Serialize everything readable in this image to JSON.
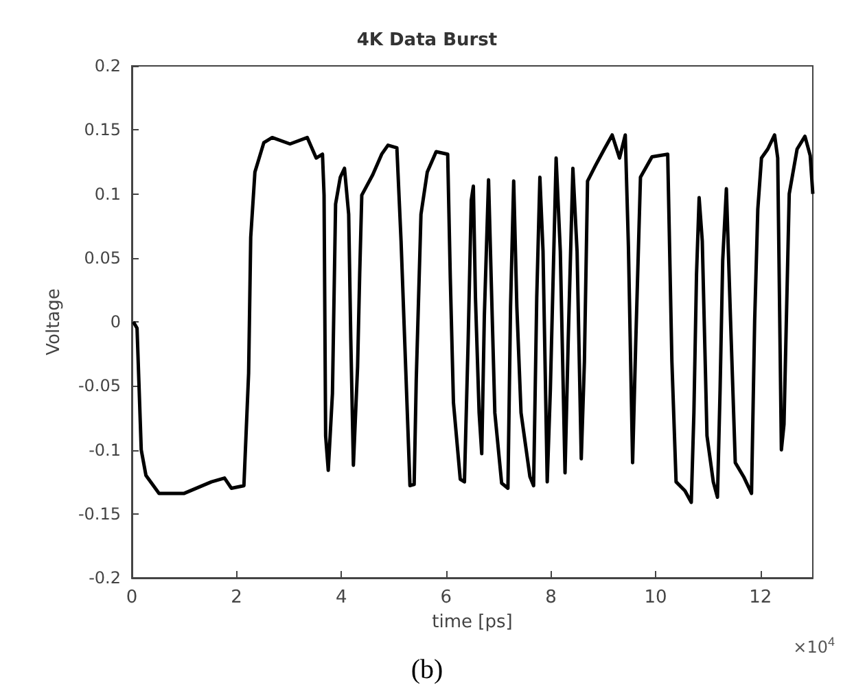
{
  "chart_data": {
    "type": "line",
    "title": "4K Data Burst",
    "xlabel": "time [ps]",
    "ylabel": "Voltage",
    "annotations": [
      "×10$^{4}$",
      "(b)"
    ],
    "xlim": [
      0,
      13
    ],
    "xticks": [
      0,
      2,
      4,
      6,
      8,
      10,
      12
    ],
    "ylim": [
      -0.2,
      0.2
    ],
    "yticks": [
      -0.2,
      -0.15,
      -0.1,
      -0.05,
      0,
      0.05,
      0.1,
      0.15,
      0.2
    ],
    "grid": false,
    "marker": "none",
    "line_style": "solid",
    "series": [
      {
        "color": "#000000",
        "x": [
          0.03,
          0.1,
          0.18,
          0.27,
          0.52,
          1.0,
          1.52,
          1.77,
          1.9,
          2.14,
          2.23,
          2.27,
          2.35,
          2.52,
          2.68,
          3.02,
          3.35,
          3.52,
          3.64,
          3.67,
          3.7,
          3.75,
          3.83,
          3.89,
          3.98,
          4.06,
          4.14,
          4.18,
          4.23,
          4.31,
          4.35,
          4.39,
          4.6,
          4.77,
          4.89,
          5.06,
          5.14,
          5.23,
          5.31,
          5.39,
          5.43,
          5.52,
          5.64,
          5.81,
          6.03,
          6.08,
          6.14,
          6.27,
          6.35,
          6.42,
          6.48,
          6.52,
          6.56,
          6.63,
          6.68,
          6.73,
          6.81,
          6.87,
          6.93,
          7.06,
          7.18,
          7.23,
          7.29,
          7.35,
          7.43,
          7.6,
          7.67,
          7.73,
          7.79,
          7.85,
          7.93,
          7.99,
          8.1,
          8.18,
          8.27,
          8.33,
          8.42,
          8.5,
          8.58,
          8.64,
          8.7,
          8.85,
          9.02,
          9.17,
          9.31,
          9.42,
          9.48,
          9.56,
          9.62,
          9.71,
          9.93,
          10.23,
          10.31,
          10.39,
          10.56,
          10.68,
          10.73,
          10.78,
          10.83,
          10.89,
          10.98,
          11.1,
          11.18,
          11.23,
          11.28,
          11.35,
          11.43,
          11.52,
          11.68,
          11.83,
          11.89,
          11.95,
          12.02,
          12.14,
          12.27,
          12.33,
          12.4,
          12.45,
          12.55,
          12.7,
          12.85,
          12.95,
          13.0
        ],
        "values": [
          0.0,
          -0.005,
          -0.1,
          -0.12,
          -0.134,
          -0.134,
          -0.125,
          -0.122,
          -0.13,
          -0.128,
          -0.04,
          0.066,
          0.117,
          0.14,
          0.144,
          0.139,
          0.144,
          0.128,
          0.131,
          0.099,
          -0.089,
          -0.116,
          -0.056,
          0.092,
          0.113,
          0.12,
          0.084,
          -0.013,
          -0.112,
          -0.035,
          0.037,
          0.099,
          0.115,
          0.131,
          0.138,
          0.136,
          0.063,
          -0.038,
          -0.128,
          -0.127,
          -0.045,
          0.084,
          0.117,
          0.133,
          0.131,
          0.034,
          -0.063,
          -0.123,
          -0.125,
          -0.016,
          0.095,
          0.106,
          0.019,
          -0.071,
          -0.103,
          0.005,
          0.111,
          0.019,
          -0.071,
          -0.126,
          -0.13,
          0.012,
          0.11,
          0.012,
          -0.071,
          -0.121,
          -0.128,
          0.019,
          0.113,
          0.055,
          -0.125,
          -0.053,
          0.128,
          0.055,
          -0.118,
          -0.016,
          0.12,
          0.055,
          -0.107,
          -0.031,
          0.11,
          0.122,
          0.135,
          0.146,
          0.128,
          0.146,
          0.059,
          -0.11,
          -0.016,
          0.113,
          0.129,
          0.131,
          -0.031,
          -0.125,
          -0.132,
          -0.141,
          -0.071,
          0.037,
          0.097,
          0.063,
          -0.089,
          -0.125,
          -0.137,
          -0.053,
          0.048,
          0.104,
          0.001,
          -0.11,
          -0.121,
          -0.134,
          0.001,
          0.088,
          0.128,
          0.135,
          0.146,
          0.128,
          -0.1,
          -0.08,
          0.1,
          0.135,
          0.145,
          0.13,
          0.1
        ]
      }
    ]
  }
}
